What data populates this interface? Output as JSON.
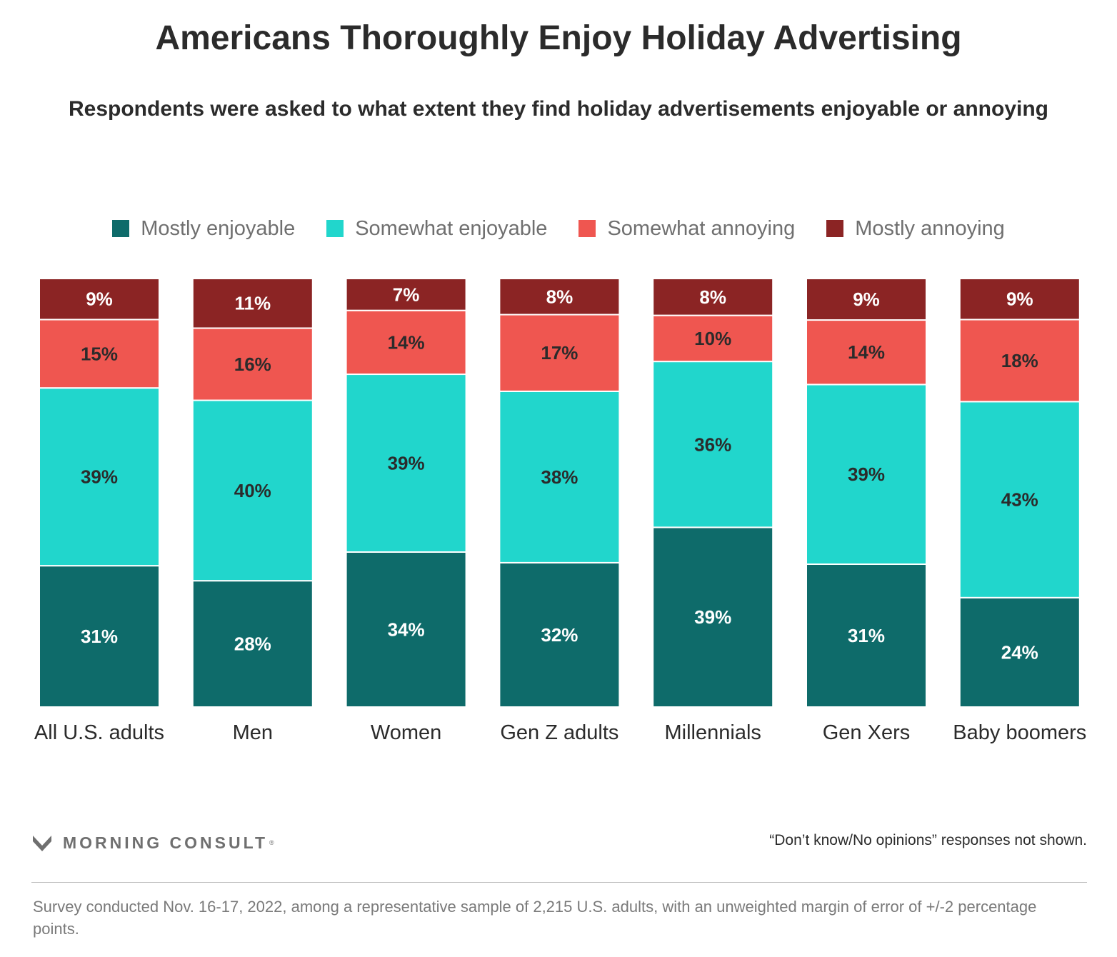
{
  "chart_data": {
    "type": "bar",
    "stacked": true,
    "orientation": "vertical",
    "title": "Americans Thoroughly Enjoy Holiday Advertising",
    "subtitle": "Respondents were asked to what extent they find holiday advertisements enjoyable or annoying",
    "categories": [
      "All U.S. adults",
      "Men",
      "Women",
      "Gen Z adults",
      "Millennials",
      "Gen Xers",
      "Baby boomers"
    ],
    "series": [
      {
        "name": "Mostly enjoyable",
        "color": "#0e6b6a",
        "label_color": "#ffffff",
        "values": [
          31,
          28,
          34,
          32,
          39,
          31,
          24
        ]
      },
      {
        "name": "Somewhat enjoyable",
        "color": "#21d6cc",
        "label_color": "#2b2b2b",
        "values": [
          39,
          40,
          39,
          38,
          36,
          39,
          43
        ]
      },
      {
        "name": "Somewhat annoying",
        "color": "#ef5650",
        "label_color": "#2b2b2b",
        "values": [
          15,
          16,
          14,
          17,
          10,
          14,
          18
        ]
      },
      {
        "name": "Mostly annoying",
        "color": "#8b2424",
        "label_color": "#ffffff",
        "values": [
          9,
          11,
          7,
          8,
          8,
          9,
          9
        ]
      }
    ],
    "value_suffix": "%",
    "legend_position": "top-center",
    "grid": false,
    "xlabel": "",
    "ylabel": ""
  },
  "branding": {
    "name": "MORNING CONSULT",
    "icon": "morning-consult-logo-icon",
    "color": "#6f6f6f"
  },
  "note": "“Don’t know/No opinions” responses not shown.",
  "footer": "Survey conducted Nov. 16-17, 2022, among a representative sample of 2,215 U.S. adults, with an unweighted margin of error of +/-2 percentage points."
}
